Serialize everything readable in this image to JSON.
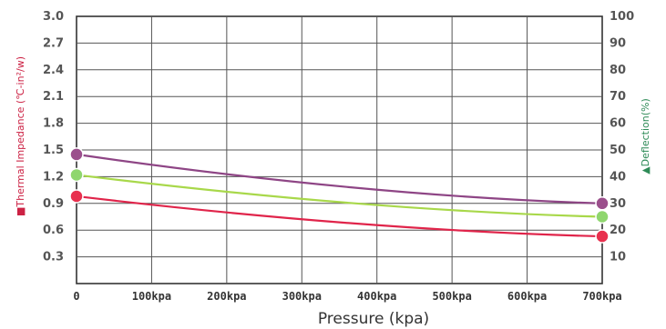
{
  "chart_data": {
    "type": "line",
    "xlabel": "Pressure (kpa)",
    "ylabel_left": "■Thermal Impedance (℃-in²/w)",
    "ylabel_right": "▲Deflection(%)",
    "x_ticks": [
      "0",
      "100kpa",
      "200kpa",
      "300kpa",
      "400kpa",
      "500kpa",
      "600kpa",
      "700kpa"
    ],
    "y_left_ticks": [
      "0.3",
      "0.6",
      "0.9",
      "1.2",
      "1.5",
      "1.8",
      "2.1",
      "2.4",
      "2.7",
      "3.0"
    ],
    "y_right_ticks": [
      "10",
      "20",
      "30",
      "40",
      "50",
      "60",
      "70",
      "80",
      "90",
      "100"
    ],
    "xlim": [
      0,
      700
    ],
    "ylim_left": [
      0,
      3.0
    ],
    "ylim_right": [
      0,
      100
    ],
    "grid": true,
    "series": [
      {
        "axis": "left",
        "color": "#8e4585",
        "marker": "#9b4f8c",
        "x": [
          0,
          700
        ],
        "y": [
          1.45,
          0.9
        ]
      },
      {
        "axis": "left",
        "color": "#a8d84a",
        "marker": "#8fd66e",
        "x": [
          0,
          700
        ],
        "y": [
          1.22,
          0.75
        ]
      },
      {
        "axis": "left",
        "color": "#e0244a",
        "marker": "#e8304e",
        "x": [
          0,
          700
        ],
        "y": [
          0.98,
          0.53
        ]
      }
    ]
  }
}
